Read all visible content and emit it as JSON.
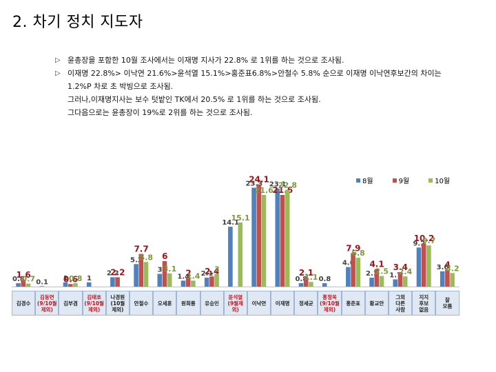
{
  "page": {
    "title": "2. 차기 정치 지도자",
    "notes": [
      {
        "bullet": "▷",
        "text": "윤총장을 포함한  10월 조사에서는 이재명 지사가 22.8% 로 1위를 하는 것으로 조사됨."
      },
      {
        "bullet": "▷",
        "text": "이재명 22.8%> 이낙연 21.6%>윤석열 15.1%>홍준표6.8%>안철수 5.8% 순으로  이재명 이낙연후보간의 차이는"
      },
      {
        "bullet": "",
        "text": "1.2%P 차로 초 박빙으로 조사됨."
      },
      {
        "bullet": "",
        "text": "그러나,이재명지사는 보수 텃밭인 TK에서  20.5% 로 1위를 하는 것으로 조사됨."
      },
      {
        "bullet": "",
        "text": "그다음으로는 윤총장이 19%로 2위를 하는 것으로  조사됨."
      }
    ]
  },
  "chart_data": {
    "type": "bar",
    "categories": [
      "김경수",
      "김동연\n(9/10월\n제외)",
      "김부겸",
      "김태호\n(9/10월\n제외)",
      "나경원\n(10월\n제외)",
      "안철수",
      "오세훈",
      "원희룡",
      "유승민",
      "윤석열\n(9월제외)",
      "이낙연",
      "이재명",
      "정세균",
      "홍정욱\n(9/10월\n제외)",
      "홍준표",
      "황교안",
      "그외\n다른\n사람",
      "지지\n후보\n없음",
      "잘\n모름"
    ],
    "category_highlight": [
      false,
      true,
      false,
      true,
      false,
      false,
      false,
      false,
      false,
      true,
      false,
      false,
      false,
      true,
      false,
      false,
      false,
      false,
      false
    ],
    "series": [
      {
        "name": "8월",
        "color": "#4f81bd",
        "label_color": "#404040",
        "values": [
          0.8,
          0.1,
          1,
          1,
          2.2,
          5.3,
          3,
          1.4,
          2.1,
          14.1,
          23.3,
          23.1,
          0.8,
          0.8,
          4.6,
          2.1,
          1.7,
          9.2,
          3.6
        ],
        "labels": [
          "0.8",
          "0.1",
          "1",
          "1",
          "2.2",
          "5.3",
          "3",
          "1.4",
          "2.1",
          "14.1",
          "23.3",
          "23.1",
          "0.8",
          "0.8",
          "4.6",
          "2.1",
          "1.7",
          "9.2",
          "3.6"
        ]
      },
      {
        "name": "9월",
        "color": "#c0504d",
        "label_color": "#a0131a",
        "values": [
          1.6,
          null,
          0.6,
          null,
          2.2,
          7.7,
          6,
          2,
          2.4,
          null,
          24.1,
          21.6,
          2.1,
          null,
          7.9,
          4.1,
          3.4,
          10.2,
          4
        ],
        "labels": [
          "1.6",
          "",
          "0.6",
          "",
          "2.2",
          "7.7",
          "6",
          "2",
          "2.4",
          "",
          "24.1",
          "21.6",
          "2.1",
          "",
          "7.9",
          "4.1",
          "3.4",
          "10.2",
          "4"
        ]
      },
      {
        "name": "10월",
        "color": "#9bbb59",
        "label_color": "#7a9a3a",
        "values": [
          0.7,
          null,
          0.8,
          null,
          null,
          5.8,
          3.1,
          1.4,
          3,
          15.1,
          21.6,
          22.8,
          1.1,
          null,
          6.8,
          2.5,
          2.4,
          9.7,
          3.2
        ],
        "labels": [
          "0.7",
          "",
          "0.8",
          "",
          "",
          "5.8",
          "3.1",
          "1.4",
          "3",
          "15.1",
          "21.6",
          "22.8",
          "1.1",
          "",
          "6.8",
          "2.5",
          "2.4",
          "9.7",
          "3.2"
        ]
      }
    ],
    "ylim": [
      0,
      25
    ],
    "grid": false,
    "legend": "top-right"
  }
}
